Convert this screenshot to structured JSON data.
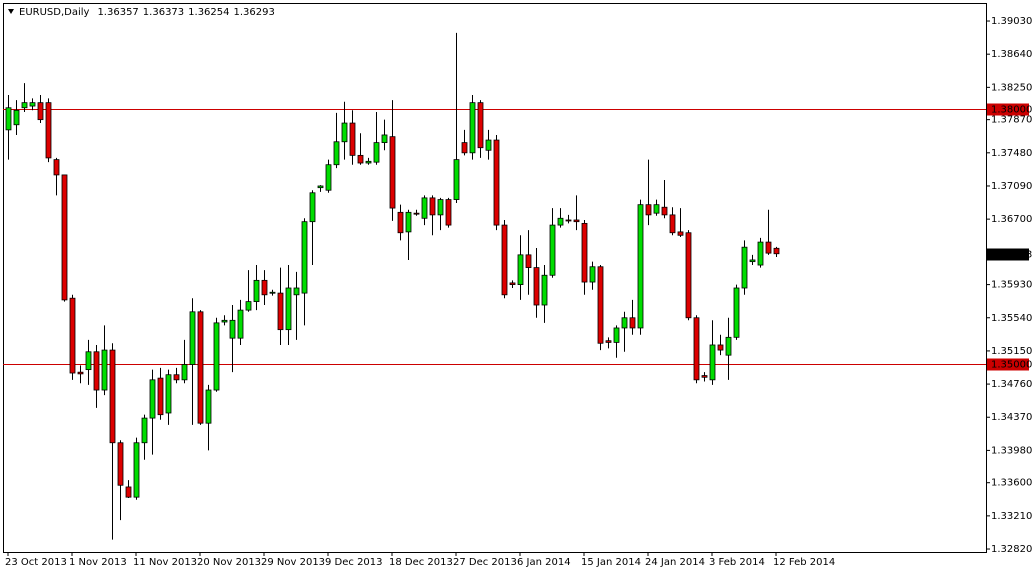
{
  "chart_data": {
    "type": "candlestick",
    "title": "EURUSD,Daily",
    "header_values": [
      1.36357,
      1.36373,
      1.36254,
      1.36293
    ],
    "categories": [
      "23 Oct 2013",
      null,
      null,
      null,
      null,
      null,
      null,
      null,
      "1 Nov 2013",
      null,
      null,
      null,
      null,
      null,
      null,
      null,
      "11 Nov 2013",
      null,
      null,
      null,
      null,
      null,
      null,
      null,
      "20 Nov 2013",
      null,
      null,
      null,
      null,
      null,
      null,
      null,
      "29 Nov 2013",
      null,
      null,
      null,
      null,
      null,
      null,
      null,
      "9 Dec 2013",
      null,
      null,
      null,
      null,
      null,
      null,
      null,
      "18 Dec 2013",
      null,
      null,
      null,
      null,
      null,
      null,
      null,
      "27 Dec 2013",
      null,
      null,
      null,
      null,
      null,
      null,
      null,
      "6 Jan 2014",
      null,
      null,
      null,
      null,
      null,
      null,
      null,
      "15 Jan 2014",
      null,
      null,
      null,
      null,
      null,
      null,
      null,
      "24 Jan 2014",
      null,
      null,
      null,
      null,
      null,
      null,
      null,
      "3 Feb 2014",
      null,
      null,
      null,
      null,
      null,
      null,
      null,
      "12 Feb 2014"
    ],
    "ohlc": [
      [
        1.3775,
        1.3816,
        1.374,
        1.3801
      ],
      [
        1.3781,
        1.381,
        1.3769,
        1.3798
      ],
      [
        1.3801,
        1.383,
        1.3796,
        1.3807
      ],
      [
        1.3803,
        1.3812,
        1.3798,
        1.3807
      ],
      [
        1.3807,
        1.3816,
        1.3783,
        1.3787
      ],
      [
        1.3807,
        1.3812,
        1.3737,
        1.3742
      ],
      [
        1.374,
        1.3742,
        1.3698,
        1.3722
      ],
      [
        1.3722,
        1.3722,
        1.3573,
        1.3575
      ],
      [
        1.3577,
        1.3581,
        1.3481,
        1.3489
      ],
      [
        1.349,
        1.3498,
        1.3477,
        1.3488
      ],
      [
        1.3493,
        1.3528,
        1.3475,
        1.3514
      ],
      [
        1.3514,
        1.3522,
        1.3448,
        1.3469
      ],
      [
        1.3469,
        1.3545,
        1.3463,
        1.3516
      ],
      [
        1.3516,
        1.3524,
        1.3293,
        1.3407
      ],
      [
        1.3407,
        1.341,
        1.3316,
        1.3357
      ],
      [
        1.3355,
        1.3363,
        1.3342,
        1.3343
      ],
      [
        1.3343,
        1.3413,
        1.334,
        1.3407
      ],
      [
        1.3407,
        1.344,
        1.3387,
        1.3436
      ],
      [
        1.3436,
        1.3493,
        1.3393,
        1.3481
      ],
      [
        1.3483,
        1.3495,
        1.3434,
        1.344
      ],
      [
        1.3442,
        1.3493,
        1.3428,
        1.3487
      ],
      [
        1.3487,
        1.3495,
        1.3477,
        1.3481
      ],
      [
        1.3481,
        1.3528,
        1.3477,
        1.3499
      ],
      [
        1.3499,
        1.3577,
        1.3428,
        1.3561
      ],
      [
        1.3561,
        1.3563,
        1.3428,
        1.343
      ],
      [
        1.343,
        1.3475,
        1.3398,
        1.3469
      ],
      [
        1.3469,
        1.3554,
        1.3467,
        1.3548
      ],
      [
        1.3549,
        1.3557,
        1.3545,
        1.3551
      ],
      [
        1.353,
        1.3569,
        1.349,
        1.3551
      ],
      [
        1.353,
        1.3575,
        1.3522,
        1.3563
      ],
      [
        1.3563,
        1.361,
        1.3561,
        1.3573
      ],
      [
        1.3573,
        1.3616,
        1.3563,
        1.3598
      ],
      [
        1.3598,
        1.361,
        1.3569,
        1.3581
      ],
      [
        1.3583,
        1.3587,
        1.358,
        1.3584
      ],
      [
        1.3583,
        1.3613,
        1.3522,
        1.354
      ],
      [
        1.354,
        1.3616,
        1.3522,
        1.3589
      ],
      [
        1.3581,
        1.3608,
        1.3528,
        1.3589
      ],
      [
        1.3583,
        1.3671,
        1.3545,
        1.3667
      ],
      [
        1.3667,
        1.3704,
        1.3616,
        1.3701
      ],
      [
        1.3707,
        1.371,
        1.3702,
        1.3709
      ],
      [
        1.3704,
        1.374,
        1.3701,
        1.3734
      ],
      [
        1.3734,
        1.3795,
        1.373,
        1.3761
      ],
      [
        1.3761,
        1.3808,
        1.374,
        1.3783
      ],
      [
        1.3783,
        1.3798,
        1.3734,
        1.3745
      ],
      [
        1.3745,
        1.3771,
        1.3734,
        1.3736
      ],
      [
        1.3736,
        1.3742,
        1.3734,
        1.3738
      ],
      [
        1.3737,
        1.3796,
        1.3734,
        1.376
      ],
      [
        1.376,
        1.3787,
        1.3751,
        1.3769
      ],
      [
        1.3767,
        1.381,
        1.3668,
        1.3683
      ],
      [
        1.3678,
        1.3687,
        1.3645,
        1.3654
      ],
      [
        1.3655,
        1.3681,
        1.3622,
        1.3678
      ],
      [
        1.3677,
        1.3681,
        1.3674,
        1.3676
      ],
      [
        1.3671,
        1.3698,
        1.3663,
        1.3695
      ],
      [
        1.3695,
        1.3698,
        1.3651,
        1.3675
      ],
      [
        1.3675,
        1.3695,
        1.3657,
        1.3693
      ],
      [
        1.3693,
        1.3695,
        1.366,
        1.3663
      ],
      [
        1.3693,
        1.3889,
        1.3689,
        1.374
      ],
      [
        1.376,
        1.3775,
        1.3745,
        1.3748
      ],
      [
        1.3748,
        1.3816,
        1.374,
        1.3807
      ],
      [
        1.3807,
        1.381,
        1.3742,
        1.3754
      ],
      [
        1.3751,
        1.3775,
        1.374,
        1.3763
      ],
      [
        1.3763,
        1.3769,
        1.3657,
        1.3663
      ],
      [
        1.3663,
        1.3669,
        1.3577,
        1.3581
      ],
      [
        1.3595,
        1.3598,
        1.3589,
        1.3593
      ],
      [
        1.3593,
        1.3651,
        1.3575,
        1.3628
      ],
      [
        1.3628,
        1.3657,
        1.3581,
        1.3613
      ],
      [
        1.3613,
        1.3636,
        1.3554,
        1.3569
      ],
      [
        1.3569,
        1.3616,
        1.3548,
        1.3604
      ],
      [
        1.3604,
        1.3683,
        1.3601,
        1.3663
      ],
      [
        1.3663,
        1.3683,
        1.366,
        1.3671
      ],
      [
        1.3669,
        1.3675,
        1.3665,
        1.3668
      ],
      [
        1.3669,
        1.3698,
        1.3657,
        1.3667
      ],
      [
        1.3665,
        1.3669,
        1.3581,
        1.3596
      ],
      [
        1.3596,
        1.362,
        1.3587,
        1.3614
      ],
      [
        1.3614,
        1.3616,
        1.3516,
        1.3524
      ],
      [
        1.3527,
        1.3531,
        1.3518,
        1.3525
      ],
      [
        1.3525,
        1.3545,
        1.3507,
        1.3542
      ],
      [
        1.3542,
        1.3561,
        1.3514,
        1.3554
      ],
      [
        1.3554,
        1.3575,
        1.3534,
        1.3542
      ],
      [
        1.3542,
        1.3693,
        1.3534,
        1.3687
      ],
      [
        1.3687,
        1.374,
        1.3663,
        1.3675
      ],
      [
        1.3677,
        1.3693,
        1.3674,
        1.3687
      ],
      [
        1.3684,
        1.3716,
        1.3671,
        1.3675
      ],
      [
        1.3675,
        1.3684,
        1.3651,
        1.3654
      ],
      [
        1.3655,
        1.3683,
        1.3649,
        1.3651
      ],
      [
        1.3654,
        1.3657,
        1.3551,
        1.3554
      ],
      [
        1.3554,
        1.3557,
        1.3477,
        1.3481
      ],
      [
        1.3486,
        1.349,
        1.3479,
        1.3484
      ],
      [
        1.3481,
        1.3551,
        1.3475,
        1.3522
      ],
      [
        1.3522,
        1.3534,
        1.351,
        1.3516
      ],
      [
        1.351,
        1.3554,
        1.3481,
        1.3531
      ],
      [
        1.3531,
        1.3593,
        1.3528,
        1.3589
      ],
      [
        1.3589,
        1.3645,
        1.3581,
        1.3637
      ],
      [
        1.362,
        1.3628,
        1.3616,
        1.3622
      ],
      [
        1.3616,
        1.3648,
        1.3613,
        1.3643
      ],
      [
        1.3643,
        1.3681,
        1.3628,
        1.363
      ],
      [
        1.36357,
        1.36373,
        1.36254,
        1.36293
      ]
    ],
    "up_color": "#00dd00",
    "down_color": "#dd0000",
    "ylim": [
      1.32785,
      1.39242
    ],
    "yticks": [
      {
        "value": 1.3903,
        "label": "1.39030"
      },
      {
        "value": 1.3864,
        "label": "1.38640"
      },
      {
        "value": 1.3825,
        "label": "1.38250"
      },
      {
        "value": 1.3787,
        "label": "1.37870"
      },
      {
        "value": 1.3748,
        "label": "1.37480"
      },
      {
        "value": 1.3709,
        "label": "1.37090"
      },
      {
        "value": 1.367,
        "label": "1.36700"
      },
      {
        "value": 1.3593,
        "label": "1.35930"
      },
      {
        "value": 1.3554,
        "label": "1.35540"
      },
      {
        "value": 1.3515,
        "label": "1.35150"
      },
      {
        "value": 1.3476,
        "label": "1.34760"
      },
      {
        "value": 1.3437,
        "label": "1.34370"
      },
      {
        "value": 1.3398,
        "label": "1.33980"
      },
      {
        "value": 1.336,
        "label": "1.33600"
      },
      {
        "value": 1.3321,
        "label": "1.33210"
      },
      {
        "value": 1.3282,
        "label": "1.32820"
      }
    ],
    "hlines": [
      {
        "value": 1.38,
        "label": "1.38000"
      },
      {
        "value": 1.35,
        "label": "1.35000"
      }
    ],
    "hline_color": "#cc0000",
    "current_price": {
      "value": 1.36293,
      "label": "1.36293"
    },
    "grid": false
  }
}
